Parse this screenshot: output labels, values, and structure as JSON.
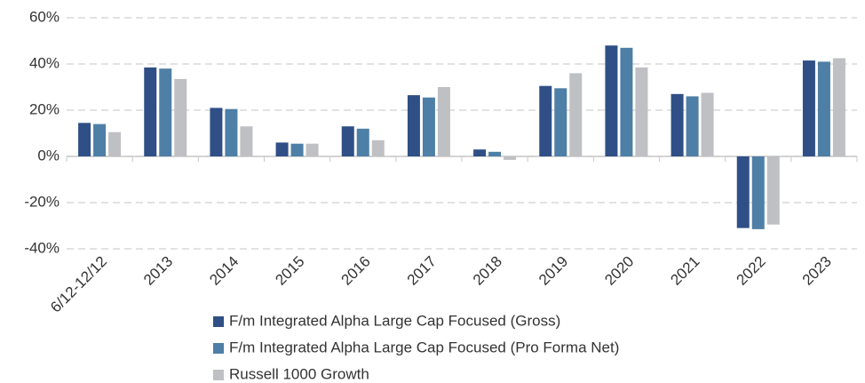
{
  "chart_data": {
    "type": "bar",
    "categories": [
      "6/12-12/12",
      "2013",
      "2014",
      "2015",
      "2016",
      "2017",
      "2018",
      "2019",
      "2020",
      "2021",
      "2022",
      "2023"
    ],
    "series": [
      {
        "name": "F/m Integrated Alpha Large Cap Focused (Gross)",
        "color": "#2f4f86",
        "values": [
          14.5,
          38.5,
          21,
          6,
          13,
          26.5,
          3,
          30.5,
          48,
          27,
          -31,
          41.5
        ]
      },
      {
        "name": "F/m Integrated Alpha Large Cap Focused (Pro Forma Net)",
        "color": "#4e7fa6",
        "values": [
          14,
          38,
          20.5,
          5.5,
          12,
          25.5,
          2,
          29.5,
          47,
          26,
          -31.5,
          41
        ]
      },
      {
        "name": "Russell 1000 Growth",
        "color": "#bfc0c4",
        "values": [
          10.5,
          33.5,
          13,
          5.5,
          7,
          30,
          -1.5,
          36,
          38.5,
          27.5,
          -29.5,
          42.5
        ]
      }
    ],
    "ylim": [
      -40,
      60
    ],
    "yticks": [
      {
        "value": -40,
        "label": "-40%"
      },
      {
        "value": -20,
        "label": "-20%"
      },
      {
        "value": 0,
        "label": "0%"
      },
      {
        "value": 20,
        "label": "20%"
      },
      {
        "value": 40,
        "label": "40%"
      },
      {
        "value": 60,
        "label": "60%"
      }
    ],
    "grid": true
  }
}
